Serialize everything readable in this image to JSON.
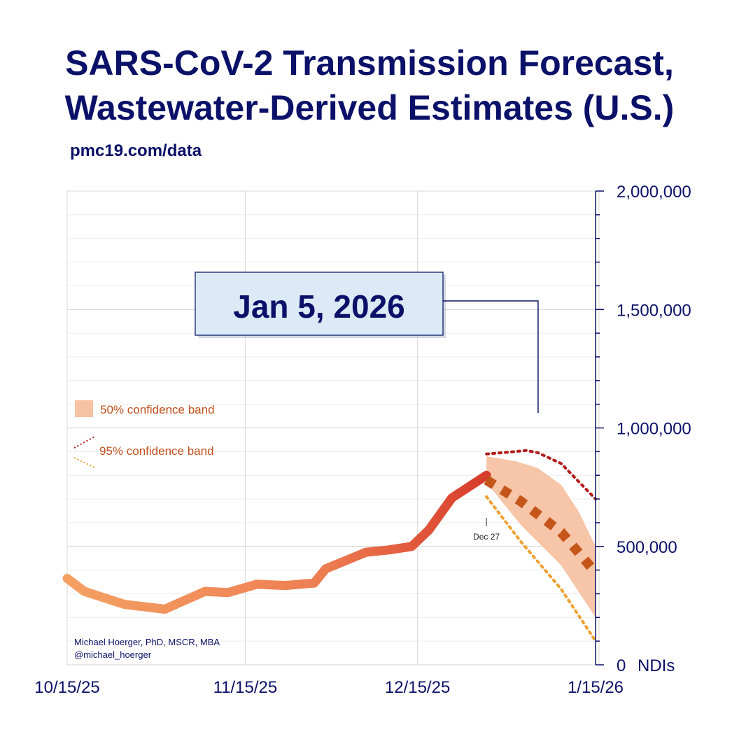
{
  "chart_data": {
    "type": "line",
    "title": "SARS-CoV-2 Transmission Forecast,",
    "title_line2": "Wastewater-Derived Estimates (U.S.)",
    "subtitle": "pmc19.com/data",
    "x_tick_labels": [
      "10/15/25",
      "11/15/25",
      "12/15/25",
      "1/15/26"
    ],
    "x_tick_days": [
      0,
      31,
      61,
      92
    ],
    "y_tick_labels": [
      "2,000,000",
      "1,500,000",
      "1,000,000",
      "500,000",
      "0"
    ],
    "y_tick_values": [
      2000000,
      1500000,
      1000000,
      500000,
      0
    ],
    "y_unit": "NDIs",
    "ylim": [
      0,
      2000000
    ],
    "xlim": [
      0,
      92
    ],
    "callout": "Jan 5, 2026",
    "callout_day": 82,
    "marker_label": "Dec 27",
    "marker_day": 73,
    "legend": {
      "band50": "50% confidence band",
      "band95": "95% confidence band"
    },
    "credit_line1": "Michael Hoerger, PhD, MSCR, MBA",
    "credit_line2": "@michael_hoerger",
    "series": [
      {
        "name": "Observed",
        "x": [
          0,
          3,
          10,
          17,
          24,
          28,
          33,
          38,
          43,
          45,
          52,
          56,
          60,
          63,
          67,
          73
        ],
        "values": [
          365000,
          310000,
          255000,
          235000,
          310000,
          305000,
          340000,
          335000,
          345000,
          405000,
          475000,
          485000,
          500000,
          570000,
          705000,
          800000
        ]
      },
      {
        "name": "Forecast median",
        "x": [
          73,
          79,
          86,
          92
        ],
        "values": [
          780000,
          690000,
          560000,
          390000
        ]
      },
      {
        "name": "95% upper",
        "x": [
          73,
          78,
          80,
          82,
          86,
          92
        ],
        "values": [
          890000,
          900000,
          905000,
          895000,
          850000,
          700000
        ]
      },
      {
        "name": "95% lower",
        "x": [
          73,
          79,
          86,
          92
        ],
        "values": [
          710000,
          520000,
          320000,
          100000
        ]
      }
    ],
    "band50_upper": {
      "x": [
        73,
        78,
        82,
        86,
        89,
        92
      ],
      "values": [
        880000,
        860000,
        830000,
        760000,
        650000,
        500000
      ]
    },
    "band50_lower": {
      "x": [
        73,
        79,
        86,
        92
      ],
      "values": [
        770000,
        590000,
        420000,
        200000
      ]
    },
    "colors": {
      "title": "#0b1068",
      "grid": "#dcdcdc",
      "observed_start": "#f4a063",
      "observed_end": "#d63a2a",
      "median": "#c4561a",
      "upper95": "#b31b1b",
      "lower95": "#f0a030",
      "band50": "#f7c2a3",
      "callout_bg": "#dce9f7"
    }
  }
}
